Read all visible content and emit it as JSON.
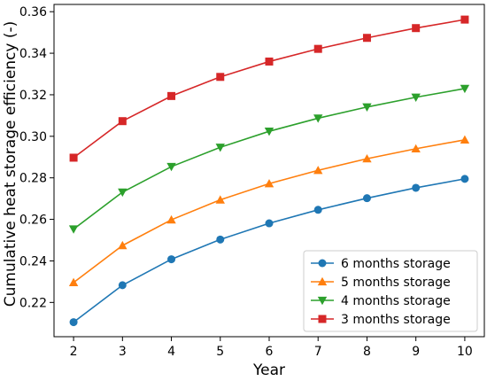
{
  "chart_data": {
    "type": "line",
    "title": "",
    "xlabel": "Year",
    "ylabel": "Cumulative heat storage efficiency (-)",
    "x": [
      2,
      3,
      4,
      5,
      6,
      7,
      8,
      9,
      10
    ],
    "xticks": [
      "2",
      "3",
      "4",
      "5",
      "6",
      "7",
      "8",
      "9",
      "10"
    ],
    "yticks": [
      "0.22",
      "0.24",
      "0.26",
      "0.28",
      "0.30",
      "0.32",
      "0.34",
      "0.36"
    ],
    "xlim": [
      1.6,
      10.4
    ],
    "ylim": [
      0.2035,
      0.3635
    ],
    "grid": false,
    "legend_position": "lower right",
    "series": [
      {
        "name": "6 months storage",
        "color": "#1f77b4",
        "marker": "circle",
        "values": [
          0.2105,
          0.2283,
          0.2408,
          0.2503,
          0.2581,
          0.2646,
          0.2702,
          0.2752,
          0.2795
        ]
      },
      {
        "name": "5 months storage",
        "color": "#ff7f0e",
        "marker": "triangle-up",
        "values": [
          0.2296,
          0.2474,
          0.2598,
          0.2694,
          0.2772,
          0.2836,
          0.2892,
          0.294,
          0.2983
        ]
      },
      {
        "name": "4 months storage",
        "color": "#2ca02c",
        "marker": "triangle-down",
        "values": [
          0.2553,
          0.2731,
          0.2854,
          0.2947,
          0.3024,
          0.3087,
          0.3141,
          0.3188,
          0.323
        ]
      },
      {
        "name": "3 months storage",
        "color": "#d62728",
        "marker": "square",
        "values": [
          0.2897,
          0.3073,
          0.3194,
          0.3286,
          0.336,
          0.3421,
          0.3474,
          0.3521,
          0.3562
        ]
      }
    ]
  }
}
